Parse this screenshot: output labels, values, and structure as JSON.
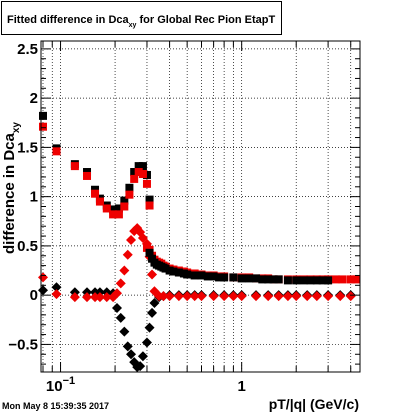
{
  "chart_data": {
    "type": "scatter",
    "title": {
      "prefix": "Fitted difference in Dca",
      "subscript": "xy",
      "suffix": " for Global Rec Pion EtapT"
    },
    "ylabel": {
      "main": "difference in Dca",
      "subscript": "xy"
    },
    "xlabel": "pT/|q| (GeV/c)",
    "x_scale": "log",
    "xlim": [
      0.078,
      4.5
    ],
    "ylim": [
      -0.78,
      2.58
    ],
    "grid": true,
    "x_tick_labels": [
      {
        "value": 0.1,
        "base": "10",
        "exponent": "−1"
      },
      {
        "value": 1,
        "label": "1"
      }
    ],
    "y_ticks": [
      {
        "value": -0.5,
        "label": "−0.5"
      },
      {
        "value": 0,
        "label": "0"
      },
      {
        "value": 0.5,
        "label": "0.5"
      },
      {
        "value": 1,
        "label": "1"
      },
      {
        "value": 1.5,
        "label": "1.5"
      },
      {
        "value": 2,
        "label": "2"
      },
      {
        "value": 2.5,
        "label": "2.5"
      }
    ],
    "series": [
      {
        "marker": "square",
        "color": "#000000",
        "points": [
          [
            0.08,
            1.82
          ],
          [
            0.095,
            1.49
          ],
          [
            0.12,
            1.33
          ],
          [
            0.14,
            1.25
          ],
          [
            0.155,
            1.07
          ],
          [
            0.165,
            0.98
          ],
          [
            0.18,
            0.91
          ],
          [
            0.195,
            0.87
          ],
          [
            0.21,
            0.88
          ],
          [
            0.225,
            0.96
          ],
          [
            0.24,
            1.09
          ],
          [
            0.255,
            1.25
          ],
          [
            0.27,
            1.31
          ],
          [
            0.285,
            1.31
          ],
          [
            0.3,
            1.22
          ],
          [
            0.31,
            0.97
          ]
        ]
      },
      {
        "marker": "square",
        "color": "#ee0000",
        "points": [
          [
            0.08,
            1.71
          ],
          [
            0.095,
            1.46
          ],
          [
            0.12,
            1.31
          ],
          [
            0.14,
            1.21
          ],
          [
            0.155,
            1.03
          ],
          [
            0.165,
            0.95
          ],
          [
            0.18,
            0.88
          ],
          [
            0.195,
            0.82
          ],
          [
            0.21,
            0.82
          ],
          [
            0.225,
            0.9
          ],
          [
            0.24,
            1.02
          ],
          [
            0.255,
            1.18
          ],
          [
            0.27,
            1.25
          ],
          [
            0.285,
            1.23
          ],
          [
            0.3,
            1.13
          ],
          [
            0.31,
            0.91
          ]
        ]
      },
      {
        "marker": "diamond",
        "color": "#000000",
        "points": [
          [
            0.08,
            0.05
          ],
          [
            0.095,
            0.08
          ],
          [
            0.12,
            0.03
          ],
          [
            0.14,
            0.03
          ],
          [
            0.155,
            0.03
          ],
          [
            0.165,
            0.03
          ],
          [
            0.18,
            0.03
          ],
          [
            0.195,
            0.02
          ],
          [
            0.205,
            -0.13
          ],
          [
            0.215,
            -0.23
          ],
          [
            0.225,
            -0.37
          ],
          [
            0.235,
            -0.52
          ],
          [
            0.245,
            -0.6
          ],
          [
            0.255,
            -0.68
          ],
          [
            0.265,
            -0.73
          ],
          [
            0.275,
            -0.72
          ],
          [
            0.285,
            -0.62
          ],
          [
            0.3,
            -0.48
          ],
          [
            0.31,
            -0.33
          ],
          [
            0.32,
            -0.18
          ],
          [
            0.33,
            -0.08
          ],
          [
            0.35,
            -0.02
          ],
          [
            0.37,
            -0.01
          ],
          [
            0.4,
            0.0
          ],
          [
            0.45,
            0.0
          ],
          [
            0.5,
            0.0
          ],
          [
            0.55,
            0.0
          ],
          [
            0.6,
            0.0
          ],
          [
            0.7,
            0.0
          ],
          [
            0.8,
            0.0
          ],
          [
            0.9,
            0.0
          ],
          [
            1.0,
            0.0
          ],
          [
            1.2,
            0.0
          ],
          [
            1.4,
            0.0
          ],
          [
            1.6,
            0.0
          ],
          [
            1.8,
            0.0
          ],
          [
            2.0,
            0.0
          ],
          [
            2.3,
            0.0
          ],
          [
            2.6,
            0.0
          ],
          [
            3.0,
            0.0
          ],
          [
            3.5,
            0.0
          ],
          [
            4.0,
            0.0
          ]
        ]
      },
      {
        "marker": "diamond",
        "color": "#ee0000",
        "points": [
          [
            0.08,
            0.18
          ],
          [
            0.095,
            0.01
          ],
          [
            0.12,
            -0.02
          ],
          [
            0.14,
            -0.02
          ],
          [
            0.155,
            -0.02
          ],
          [
            0.165,
            -0.02
          ],
          [
            0.18,
            -0.02
          ],
          [
            0.195,
            -0.02
          ],
          [
            0.205,
            0.02
          ],
          [
            0.215,
            0.12
          ],
          [
            0.225,
            0.25
          ],
          [
            0.235,
            0.41
          ],
          [
            0.245,
            0.56
          ],
          [
            0.255,
            0.65
          ],
          [
            0.265,
            0.68
          ],
          [
            0.275,
            0.64
          ],
          [
            0.285,
            0.58
          ],
          [
            0.3,
            0.52
          ],
          [
            0.31,
            0.39
          ],
          [
            0.32,
            0.21
          ],
          [
            0.33,
            0.04
          ],
          [
            0.35,
            -0.01
          ],
          [
            0.37,
            -0.01
          ],
          [
            0.4,
            -0.01
          ],
          [
            0.45,
            -0.01
          ],
          [
            0.5,
            -0.01
          ],
          [
            0.55,
            -0.01
          ],
          [
            0.6,
            -0.01
          ],
          [
            0.7,
            -0.01
          ],
          [
            0.8,
            -0.01
          ],
          [
            0.9,
            -0.01
          ],
          [
            1.0,
            -0.01
          ],
          [
            1.2,
            -0.01
          ],
          [
            1.4,
            -0.01
          ],
          [
            1.6,
            -0.01
          ],
          [
            1.8,
            -0.01
          ],
          [
            2.0,
            -0.01
          ],
          [
            2.3,
            -0.01
          ],
          [
            2.6,
            -0.01
          ],
          [
            3.0,
            -0.01
          ],
          [
            3.5,
            -0.01
          ],
          [
            4.0,
            -0.01
          ]
        ]
      },
      {
        "marker": "square",
        "color": "#ee0000",
        "points": [
          [
            0.3,
            0.48
          ],
          [
            0.31,
            0.46
          ],
          [
            0.32,
            0.4
          ],
          [
            0.33,
            0.36
          ],
          [
            0.34,
            0.34
          ],
          [
            0.35,
            0.33
          ],
          [
            0.36,
            0.32
          ],
          [
            0.37,
            0.3
          ],
          [
            0.38,
            0.29
          ],
          [
            0.4,
            0.27
          ],
          [
            0.42,
            0.26
          ],
          [
            0.45,
            0.25
          ],
          [
            0.48,
            0.24
          ],
          [
            0.5,
            0.23
          ],
          [
            0.55,
            0.22
          ],
          [
            0.6,
            0.21
          ],
          [
            0.65,
            0.2
          ],
          [
            0.7,
            0.2
          ],
          [
            0.75,
            0.19
          ],
          [
            0.8,
            0.19
          ],
          [
            0.9,
            0.18
          ],
          [
            1.0,
            0.18
          ],
          [
            1.1,
            0.18
          ],
          [
            1.2,
            0.17
          ],
          [
            1.3,
            0.17
          ],
          [
            1.4,
            0.17
          ],
          [
            1.5,
            0.16
          ],
          [
            1.6,
            0.16
          ],
          [
            1.8,
            0.16
          ],
          [
            2.0,
            0.16
          ],
          [
            2.2,
            0.16
          ],
          [
            2.4,
            0.16
          ],
          [
            2.6,
            0.16
          ],
          [
            2.8,
            0.16
          ],
          [
            3.0,
            0.16
          ],
          [
            3.3,
            0.16
          ],
          [
            3.6,
            0.16
          ],
          [
            4.0,
            0.16
          ],
          [
            4.3,
            0.16
          ]
        ]
      },
      {
        "marker": "square",
        "color": "#000000",
        "points": [
          [
            0.31,
            0.43
          ],
          [
            0.32,
            0.37
          ],
          [
            0.33,
            0.33
          ],
          [
            0.34,
            0.31
          ],
          [
            0.35,
            0.3
          ],
          [
            0.36,
            0.29
          ],
          [
            0.37,
            0.28
          ],
          [
            0.38,
            0.27
          ],
          [
            0.4,
            0.25
          ],
          [
            0.42,
            0.24
          ],
          [
            0.45,
            0.23
          ],
          [
            0.48,
            0.22
          ],
          [
            0.5,
            0.21
          ],
          [
            0.55,
            0.2
          ],
          [
            0.6,
            0.2
          ],
          [
            0.65,
            0.19
          ],
          [
            0.7,
            0.19
          ],
          [
            0.75,
            0.18
          ],
          [
            0.8,
            0.18
          ],
          [
            0.9,
            0.18
          ],
          [
            1.0,
            0.17
          ],
          [
            1.1,
            0.17
          ],
          [
            1.2,
            0.17
          ],
          [
            1.3,
            0.16
          ],
          [
            1.4,
            0.16
          ],
          [
            1.5,
            0.16
          ],
          [
            1.6,
            0.16
          ],
          [
            1.8,
            0.15
          ],
          [
            2.0,
            0.15
          ],
          [
            2.2,
            0.15
          ],
          [
            2.4,
            0.15
          ],
          [
            2.6,
            0.15
          ],
          [
            2.8,
            0.15
          ],
          [
            3.0,
            0.15
          ]
        ]
      }
    ]
  },
  "timestamp": "Mon May  8 15:39:35 2017"
}
